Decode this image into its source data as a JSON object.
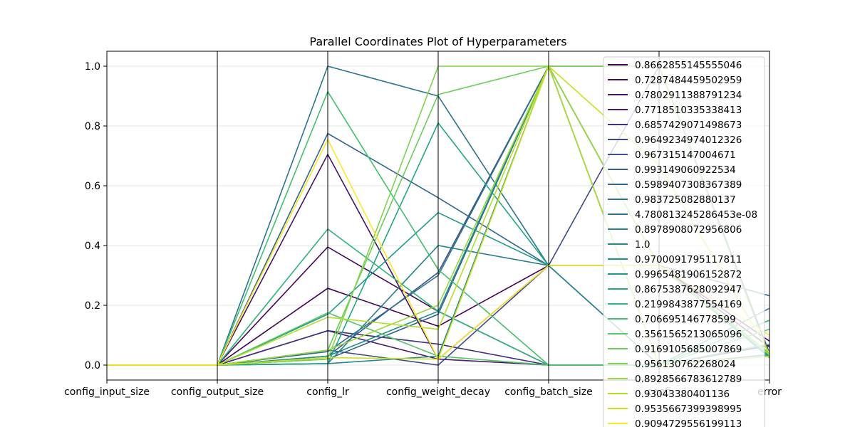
{
  "chart_data": {
    "type": "line",
    "subtype": "parallel-coordinates",
    "title": "Parallel Coordinates Plot of Hyperparameters",
    "categories": [
      "config_input_size",
      "config_output_size",
      "config_lr",
      "config_weight_decay",
      "config_batch_size",
      "config_epochs",
      "error"
    ],
    "visible_category_labels": [
      "config_input_size",
      "config_output_size",
      "config_lr",
      "config_weight_decay",
      "config_batch_size",
      "confi",
      "error"
    ],
    "ylim": [
      -0.05,
      1.05
    ],
    "yticks": [
      "0.0",
      "0.2",
      "0.4",
      "0.6",
      "0.8",
      "1.0"
    ],
    "grid": true,
    "legend_placement": "right",
    "series": [
      {
        "name": "0.8662855145555046",
        "color": "#440154",
        "values": [
          0,
          0,
          0.257,
          0.13,
          0.333,
          0.333,
          0.08
        ]
      },
      {
        "name": "0.7287484459502959",
        "color": "#46085c",
        "values": [
          0,
          0,
          0.395,
          0.18,
          0,
          0,
          0.07
        ]
      },
      {
        "name": "0.7802911388791234",
        "color": "#471365",
        "values": [
          0,
          0,
          0.705,
          0.02,
          0.333,
          0.333,
          0.06
        ]
      },
      {
        "name": "0.7718510335338413",
        "color": "#47196e",
        "values": [
          0,
          0,
          0.115,
          0.02,
          0,
          0,
          0.065
        ]
      },
      {
        "name": "0.6857429071498673",
        "color": "#43307f",
        "values": [
          0,
          0,
          0.115,
          0.07,
          0,
          0,
          0.07
        ]
      },
      {
        "name": "0.9649234974012326",
        "color": "#3e4989",
        "values": [
          0,
          0,
          0.05,
          0,
          0.333,
          1.0,
          0.04
        ]
      },
      {
        "name": "0.967315147004671",
        "color": "#3a538b",
        "values": [
          0,
          0,
          0.03,
          0.31,
          1.0,
          0.333,
          0.035
        ]
      },
      {
        "name": "0.993149060922534",
        "color": "#355e8d",
        "values": [
          0,
          0,
          0.02,
          0.17,
          1.0,
          1.0,
          0.03
        ]
      },
      {
        "name": "0.5989407308367389",
        "color": "#31688e",
        "values": [
          0,
          0,
          0.775,
          0.56,
          0.333,
          0.333,
          0.232
        ]
      },
      {
        "name": "0.983725082880137",
        "color": "#2d708e",
        "values": [
          0,
          0,
          0.045,
          0.3,
          1.0,
          0,
          0.035
        ]
      },
      {
        "name": "4.780813245286453e-08",
        "color": "#2b768e",
        "values": [
          0,
          0,
          1.0,
          0.9,
          0.333,
          0,
          0.03
        ]
      },
      {
        "name": "0.8978908072956806",
        "color": "#27808e",
        "values": [
          0,
          0,
          0.005,
          0.4,
          0.333,
          0,
          0.19
        ]
      },
      {
        "name": "1.0",
        "color": "#23898e",
        "values": [
          0,
          0,
          0.005,
          0.03,
          1.0,
          0.333,
          0.025
        ]
      },
      {
        "name": "0.9700091795117811",
        "color": "#20928c",
        "values": [
          0,
          0,
          0.03,
          0.18,
          1.0,
          0,
          0.03
        ]
      },
      {
        "name": "0.9965481906152872",
        "color": "#1f9a8a",
        "values": [
          0,
          0,
          0.17,
          0.51,
          0.333,
          0.333,
          0.025
        ]
      },
      {
        "name": "0.8675387628092947",
        "color": "#22a785",
        "values": [
          0,
          0,
          0.005,
          0.81,
          0.333,
          0.333,
          0.03
        ]
      },
      {
        "name": "0.2199843877554169",
        "color": "#2fb47c",
        "values": [
          0,
          0,
          0.455,
          0.18,
          0,
          0,
          0.15
        ]
      },
      {
        "name": "0.706695146778599",
        "color": "#44bf70",
        "values": [
          0,
          0,
          0.915,
          0.32,
          0,
          0,
          0.07
        ]
      },
      {
        "name": "0.3561565213065096",
        "color": "#56c667",
        "values": [
          0,
          0,
          0.175,
          0.03,
          0,
          0,
          0.12
        ]
      },
      {
        "name": "0.9169105685007869",
        "color": "#6ccd5a",
        "values": [
          0,
          0,
          0.05,
          0.905,
          1.0,
          0.333,
          0.04
        ]
      },
      {
        "name": "0.956130762268024",
        "color": "#7fd34e",
        "values": [
          0,
          0,
          0.02,
          1.0,
          1.0,
          1.0,
          0.03
        ]
      },
      {
        "name": "0.8928566783612789",
        "color": "#9ad93d",
        "values": [
          0,
          0,
          0.05,
          0.2,
          1.0,
          0.333,
          0.035
        ]
      },
      {
        "name": "0.93043380401136",
        "color": "#b5de2b",
        "values": [
          0,
          0,
          0.16,
          0.12,
          1.0,
          0,
          0.03
        ]
      },
      {
        "name": "0.9535667399398995",
        "color": "#c8e020",
        "values": [
          0,
          0,
          0.025,
          0.02,
          1.0,
          0.67,
          0.04
        ]
      },
      {
        "name": "0.9094729556199113",
        "color": "#fde725",
        "values": [
          0,
          0,
          0.755,
          0.02,
          0.333,
          0.333,
          0.1
        ]
      }
    ]
  }
}
